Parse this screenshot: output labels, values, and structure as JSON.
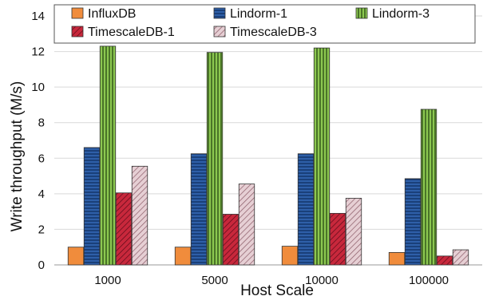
{
  "chart_data": {
    "type": "bar",
    "title": "",
    "xlabel": "Host Scale",
    "ylabel": "Write throughput (M/s)",
    "ylim": [
      0,
      14
    ],
    "yticks": [
      0,
      2,
      4,
      6,
      8,
      10,
      12,
      14
    ],
    "grid": "horizontal",
    "legend_position": "top",
    "categories": [
      "1000",
      "5000",
      "10000",
      "100000"
    ],
    "series": [
      {
        "name": "InfluxDB",
        "values": [
          1.0,
          1.0,
          1.05,
          0.7
        ],
        "color": "#f08c3c",
        "pattern": "solid"
      },
      {
        "name": "Lindorm-1",
        "values": [
          6.6,
          6.25,
          6.25,
          4.85
        ],
        "color": "#2e5fa8",
        "pattern": "horizontal-lines"
      },
      {
        "name": "Lindorm-3",
        "values": [
          12.3,
          11.95,
          12.2,
          8.75
        ],
        "color": "#8cc850",
        "pattern": "vertical-lines"
      },
      {
        "name": "TimescaleDB-1",
        "values": [
          4.05,
          2.85,
          2.9,
          0.5
        ],
        "color": "#c8283c",
        "pattern": "diagonal-lines"
      },
      {
        "name": "TimescaleDB-3",
        "values": [
          5.55,
          4.55,
          3.75,
          0.85
        ],
        "color": "#c8a0aa",
        "pattern": "diagonal-lines"
      }
    ]
  }
}
